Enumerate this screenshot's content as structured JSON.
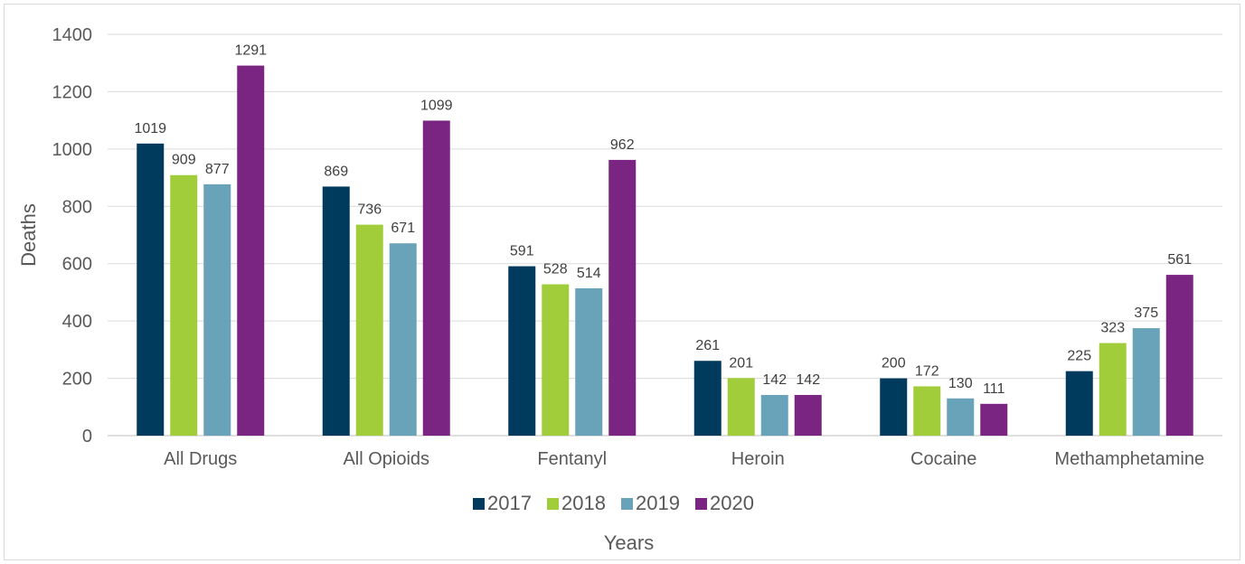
{
  "chart_data": {
    "type": "bar",
    "categories": [
      "All Drugs",
      "All Opioids",
      "Fentanyl",
      "Heroin",
      "Cocaine",
      "Methamphetamine"
    ],
    "series": [
      {
        "name": "2017",
        "color": "#003a5d",
        "values": [
          1019,
          869,
          591,
          261,
          200,
          225
        ]
      },
      {
        "name": "2018",
        "color": "#a2cd3a",
        "values": [
          909,
          736,
          528,
          201,
          172,
          323
        ]
      },
      {
        "name": "2019",
        "color": "#69a3ba",
        "values": [
          877,
          671,
          514,
          142,
          130,
          375
        ]
      },
      {
        "name": "2020",
        "color": "#7b2582",
        "values": [
          1291,
          1099,
          962,
          142,
          111,
          561
        ]
      }
    ],
    "xlabel": "Years",
    "ylabel": "Deaths",
    "ylim": [
      0,
      1400
    ],
    "yticks": [
      0,
      200,
      400,
      600,
      800,
      1000,
      1200,
      1400
    ],
    "grid": true,
    "legend_position": "bottom",
    "data_labels": true
  }
}
